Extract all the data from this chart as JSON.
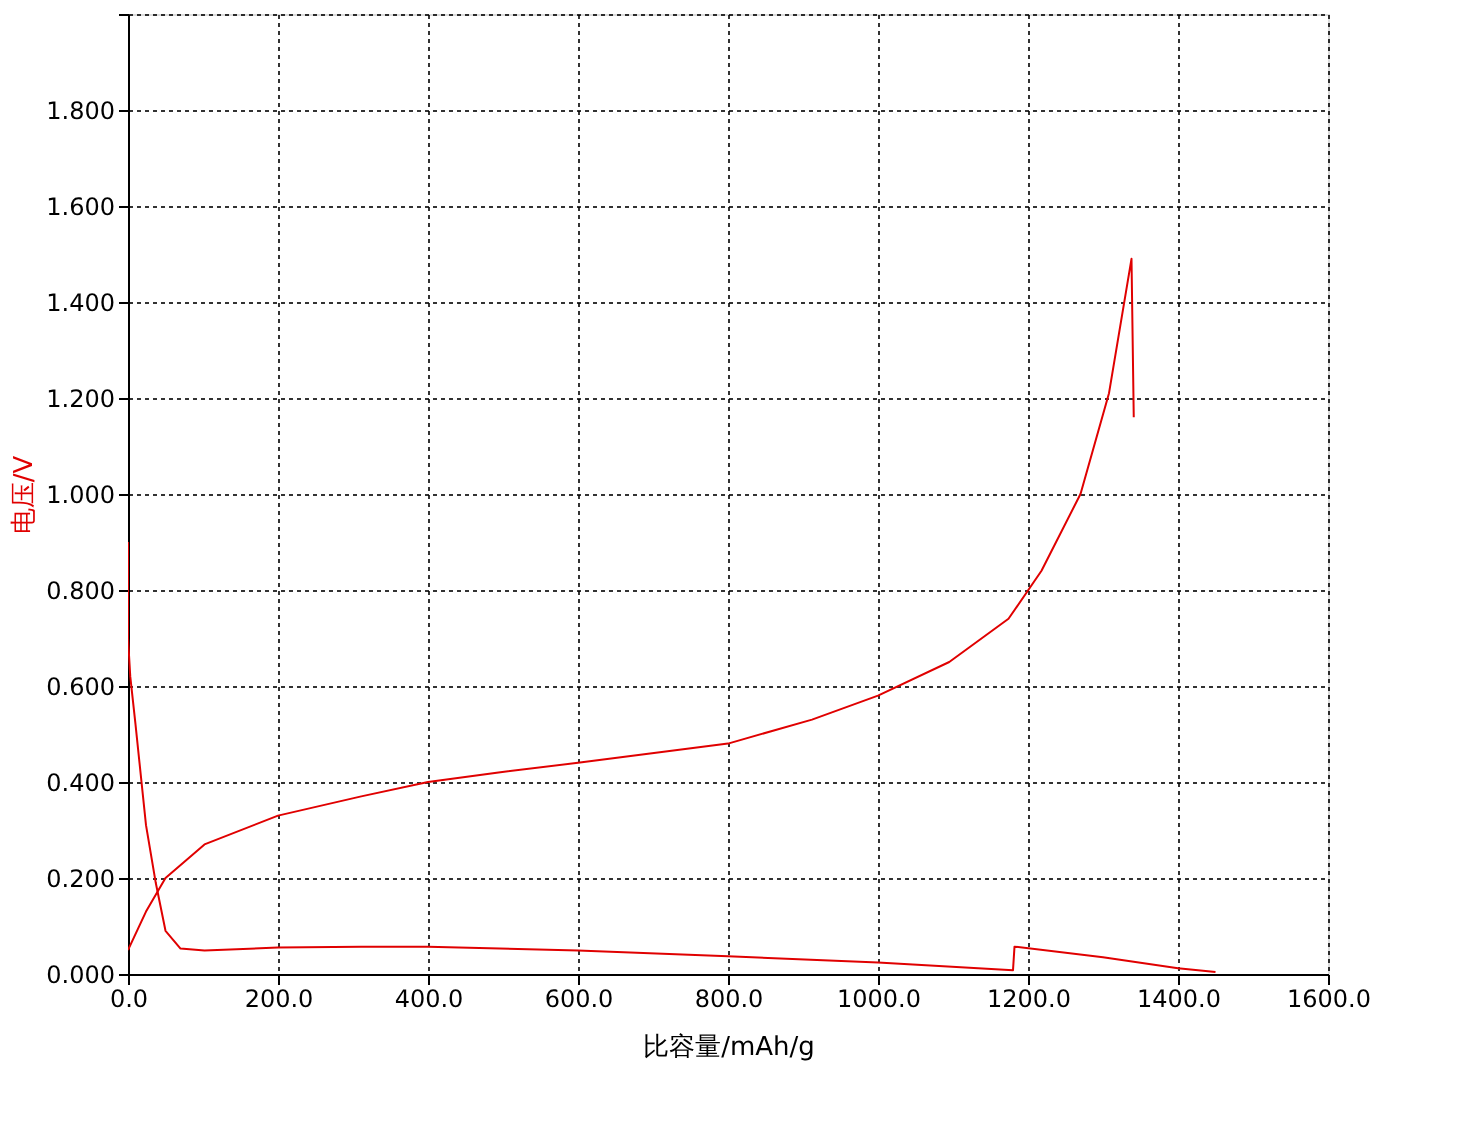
{
  "chart_data": {
    "type": "line",
    "xlabel": "比容量/mAh/g",
    "ylabel": "电压/V",
    "xlim": [
      0,
      1600
    ],
    "ylim": [
      0,
      2.0
    ],
    "xticks": [
      {
        "value": 0,
        "label": "0.0"
      },
      {
        "value": 200,
        "label": "200.0"
      },
      {
        "value": 400,
        "label": "400.0"
      },
      {
        "value": 600,
        "label": "600.0"
      },
      {
        "value": 800,
        "label": "800.0"
      },
      {
        "value": 1000,
        "label": "1000.0"
      },
      {
        "value": 1200,
        "label": "1200.0"
      },
      {
        "value": 1400,
        "label": "1400.0"
      },
      {
        "value": 1600,
        "label": "1600.0"
      }
    ],
    "yticks": [
      {
        "value": 0,
        "label": "0.000"
      },
      {
        "value": 0.2,
        "label": "0.200"
      },
      {
        "value": 0.4,
        "label": "0.400"
      },
      {
        "value": 0.6,
        "label": "0.600"
      },
      {
        "value": 0.8,
        "label": "0.800"
      },
      {
        "value": 1.0,
        "label": "1.000"
      },
      {
        "value": 1.2,
        "label": "1.200"
      },
      {
        "value": 1.4,
        "label": "1.400"
      },
      {
        "value": 1.6,
        "label": "1.600"
      },
      {
        "value": 1.8,
        "label": "1.800"
      },
      {
        "value": 2.0,
        "label": null
      }
    ],
    "grid": true,
    "line_style": "solid",
    "marker": "none",
    "series": [
      {
        "color": "#e00000",
        "x": [
          0,
          0,
          3,
          10,
          24,
          37,
          50,
          70,
          102,
          200,
          311,
          400,
          600,
          800,
          1000,
          1180,
          1182,
          1300,
          1400,
          1450
        ],
        "values": [
          0.9,
          0.7,
          0.62,
          0.52,
          0.31,
          0.19,
          0.09,
          0.053,
          0.049,
          0.055,
          0.057,
          0.057,
          0.049,
          0.037,
          0.024,
          0.008,
          0.057,
          0.035,
          0.012,
          0.004
        ]
      },
      {
        "color": "#e00000",
        "x": [
          0,
          24,
          50,
          102,
          200,
          311,
          400,
          494,
          600,
          800,
          912,
          1000,
          1095,
          1174,
          1218,
          1270,
          1308,
          1338,
          1341
        ],
        "values": [
          0.05,
          0.13,
          0.2,
          0.27,
          0.33,
          0.37,
          0.4,
          0.42,
          0.44,
          0.48,
          0.53,
          0.58,
          0.65,
          0.74,
          0.84,
          1.0,
          1.21,
          1.49,
          1.16
        ]
      }
    ]
  }
}
